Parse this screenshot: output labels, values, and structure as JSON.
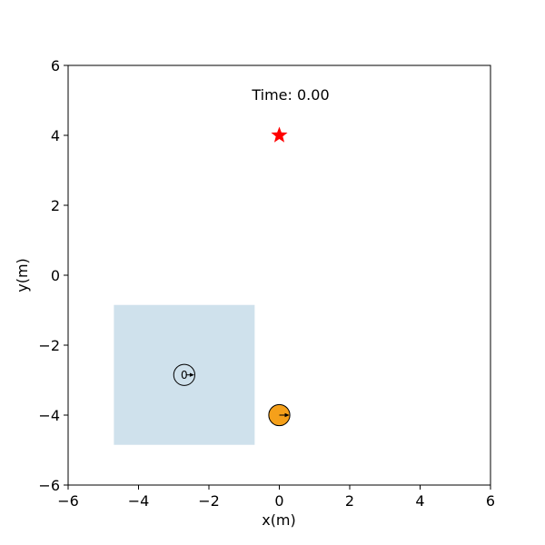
{
  "chart_data": {
    "type": "scatter",
    "title": "",
    "xlabel": "x(m)",
    "ylabel": "y(m)",
    "xlim": [
      -6,
      6
    ],
    "ylim": [
      -6,
      6
    ],
    "xticks": [
      -6,
      -4,
      -2,
      0,
      2,
      4,
      6
    ],
    "yticks": [
      -6,
      -4,
      -2,
      0,
      2,
      4,
      6
    ],
    "xtick_labels": [
      "−6",
      "−4",
      "−2",
      "0",
      "2",
      "4",
      "6"
    ],
    "ytick_labels": [
      "−6",
      "−4",
      "−2",
      "0",
      "2",
      "4",
      "6"
    ],
    "grid": false,
    "time_text": "Time: 0.00",
    "region": {
      "x_min": -4.7,
      "x_max": -0.7,
      "y_min": -4.85,
      "y_max": -0.85,
      "color": "#cfe1ec"
    },
    "goal": {
      "x": 0.0,
      "y": 4.0,
      "marker": "star",
      "color": "#ff0000"
    },
    "agents": [
      {
        "id": "0",
        "label": "0",
        "x": -2.7,
        "y": -2.85,
        "radius": 0.3,
        "heading_deg": 0,
        "fill": "none",
        "edge": "#000000"
      },
      {
        "id": "robot",
        "label": "",
        "x": 0.0,
        "y": -4.0,
        "radius": 0.3,
        "heading_deg": 0,
        "fill": "#f5a01a",
        "edge": "#000000"
      }
    ]
  }
}
